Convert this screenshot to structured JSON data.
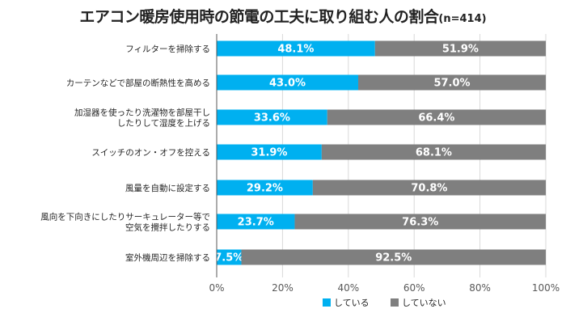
{
  "chart_data": {
    "type": "bar",
    "orientation": "horizontal",
    "stacked": true,
    "title": "エアコン暖房使用時の節電の工夫に取り組む人の割合",
    "subtitle": "(n=414)",
    "categories": [
      [
        "フィルターを掃除する"
      ],
      [
        "カーテンなどで部屋の断熱性を高める"
      ],
      [
        "加湿器を使ったり洗濯物を部屋干し",
        "したりして湿度を上げる"
      ],
      [
        "スイッチのオン・オフを控える"
      ],
      [
        "風量を自動に設定する"
      ],
      [
        "風向を下向きにしたりサーキュレーター等で",
        "空気を攪拌したりする"
      ],
      [
        "室外機周辺を掃除する"
      ]
    ],
    "series": [
      {
        "name": "している",
        "color": "#00B0F0",
        "values": [
          48.1,
          43.0,
          33.6,
          31.9,
          29.2,
          23.7,
          7.5
        ],
        "labels": [
          "48.1%",
          "43.0%",
          "33.6%",
          "31.9%",
          "29.2%",
          "23.7%",
          "7.5%"
        ]
      },
      {
        "name": "していない",
        "color": "#7F7F7F",
        "values": [
          51.9,
          57.0,
          66.4,
          68.1,
          70.8,
          76.3,
          92.5
        ],
        "labels": [
          "51.9%",
          "57.0%",
          "66.4%",
          "68.1%",
          "70.8%",
          "76.3%",
          "92.5%"
        ]
      }
    ],
    "xlim": [
      0,
      100
    ],
    "xticks": [
      0,
      20,
      40,
      60,
      80,
      100
    ],
    "xtick_labels": [
      "0%",
      "20%",
      "40%",
      "60%",
      "80%",
      "100%"
    ],
    "legend_position": "bottom",
    "grid": true,
    "grid_color": "#D9D9D9",
    "axis_color": "#595959",
    "label_color": "#FFFFFF"
  }
}
